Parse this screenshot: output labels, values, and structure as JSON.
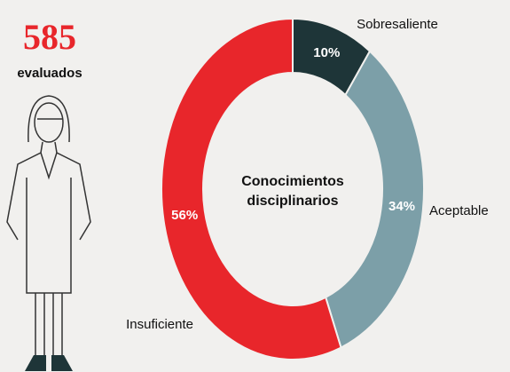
{
  "chart_data": {
    "type": "donut",
    "title": "Conocimientos disciplinarios",
    "total": 585,
    "total_label": "evaluados",
    "categories": [
      "Sobresaliente",
      "Aceptable",
      "Insuficiente"
    ],
    "values": [
      10,
      34,
      56
    ],
    "value_labels": [
      "10%",
      "34%",
      "56%"
    ],
    "colors": [
      "#1e3538",
      "#7c9fa8",
      "#e8262b"
    ]
  }
}
